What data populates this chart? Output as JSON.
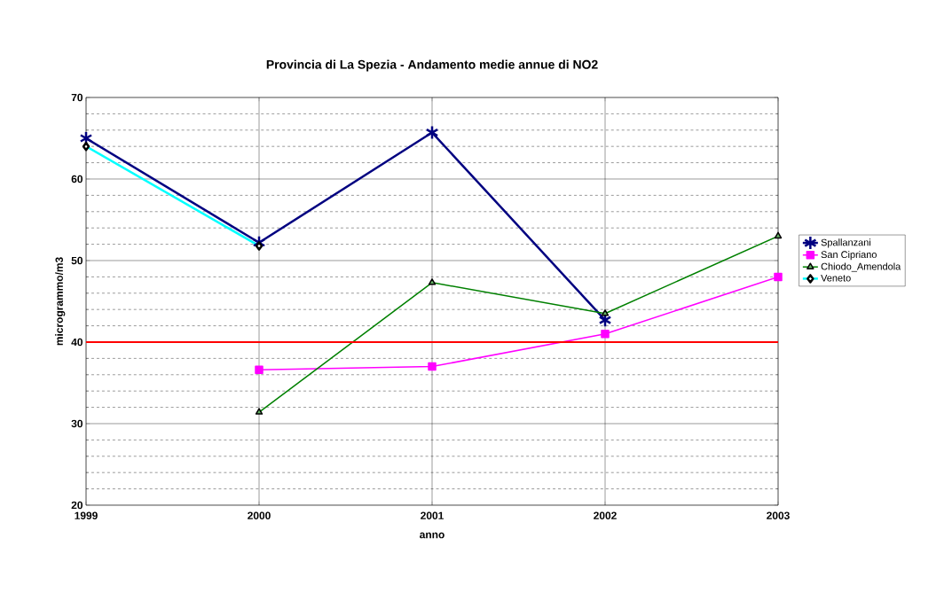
{
  "chart_data": {
    "type": "line",
    "title": "Provincia di La Spezia - Andamento medie annue di NO2",
    "xlabel": "anno",
    "ylabel": "microgrammo/m3",
    "x": [
      1999,
      2000,
      2001,
      2002,
      2003
    ],
    "series": [
      {
        "name": "Spallanzani",
        "color": "#000080",
        "marker": "cross",
        "values": [
          65,
          52.2,
          65.7,
          42.7,
          null
        ]
      },
      {
        "name": "San Cipriano",
        "color": "#ff00ff",
        "marker": "square",
        "values": [
          null,
          36.6,
          37,
          41,
          48
        ]
      },
      {
        "name": "Chiodo_Amendola",
        "color": "#008000",
        "marker": "triangle",
        "values": [
          null,
          31.4,
          47.3,
          43.5,
          53
        ]
      },
      {
        "name": "Veneto",
        "color": "#00ffff",
        "marker": "diamond",
        "values": [
          64,
          51.8,
          null,
          null,
          null
        ]
      }
    ],
    "xlim": [
      1999,
      2003
    ],
    "xticks": [
      1999,
      2000,
      2001,
      2002,
      2003
    ],
    "ylim": [
      20,
      70
    ],
    "yticks": [
      20,
      30,
      40,
      50,
      60,
      70
    ],
    "ref_lines": [
      {
        "axis": "y",
        "value": 40,
        "color": "#ff0000"
      }
    ],
    "grid": true,
    "legend": "right",
    "line_style": "solid"
  }
}
